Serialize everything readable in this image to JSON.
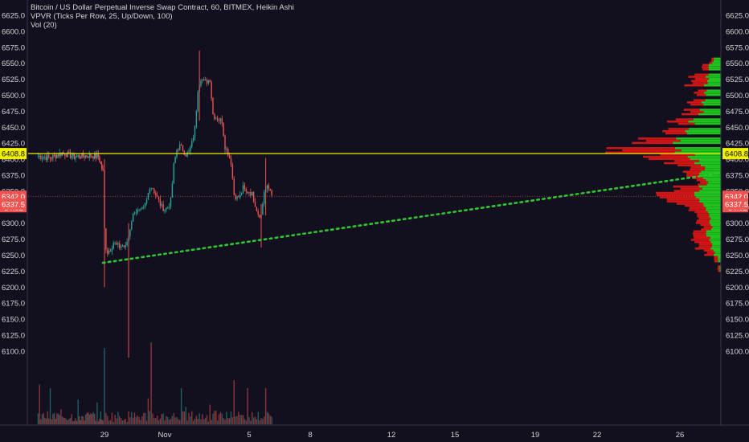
{
  "legend": {
    "line1": "Bitcoin / US Dollar Perpetual Inverse Swap Contract, 60, BITMEX, Heikin Ashi",
    "line2": "VPVR (Ticks Per Row, 25, Up/Down, 100)",
    "line3": "Vol (20)"
  },
  "colors": {
    "background": "#120f1e",
    "up": "#26a69a",
    "down": "#ef5350",
    "vp_up": "#1fc41f",
    "vp_down": "#d01515",
    "resistance": "#f0f000",
    "trendline": "#2ec62e"
  },
  "price_tags": {
    "resistance": "6408.8",
    "current_price": "6342.0",
    "countdown": "34:02",
    "level_below": "6337.5"
  },
  "chart_data": {
    "type": "candlestick",
    "chart_style": "Heikin Ashi",
    "symbol": "Bitcoin / US Dollar Perpetual Inverse Swap Contract",
    "exchange": "BITMEX",
    "interval": "60",
    "ylim": [
      6090,
      6635
    ],
    "y_ticks": [
      "6625.0",
      "6600.0",
      "6575.0",
      "6550.0",
      "6525.0",
      "6500.0",
      "6475.0",
      "6450.0",
      "6425.0",
      "6400.0",
      "6375.0",
      "6350.0",
      "6325.0",
      "6300.0",
      "6275.0",
      "6250.0",
      "6225.0",
      "6200.0",
      "6175.0",
      "6150.0",
      "6125.0",
      "6100.0"
    ],
    "x_ticks": [
      "29",
      "Nov",
      "5",
      "8",
      "12",
      "15",
      "19",
      "22",
      "26"
    ],
    "price_path": [
      [
        0,
        6405
      ],
      [
        4,
        6402
      ],
      [
        8,
        6410
      ],
      [
        12,
        6404
      ],
      [
        17,
        6406
      ],
      [
        20,
        6404
      ],
      [
        21.5,
        6380
      ],
      [
        22,
        6290
      ],
      [
        22.5,
        6262
      ],
      [
        23,
        6255
      ],
      [
        24,
        6260
      ],
      [
        25,
        6270
      ],
      [
        26,
        6265
      ],
      [
        27,
        6263
      ],
      [
        28,
        6265
      ],
      [
        29,
        6262
      ],
      [
        30,
        6280
      ],
      [
        31,
        6305
      ],
      [
        32,
        6320
      ],
      [
        33,
        6318
      ],
      [
        34,
        6318
      ],
      [
        35,
        6322
      ],
      [
        36,
        6335
      ],
      [
        37,
        6358
      ],
      [
        38,
        6355
      ],
      [
        39,
        6345
      ],
      [
        40,
        6335
      ],
      [
        41,
        6325
      ],
      [
        42,
        6322
      ],
      [
        43,
        6325
      ],
      [
        44,
        6335
      ],
      [
        45,
        6390
      ],
      [
        46,
        6415
      ],
      [
        47,
        6420
      ],
      [
        48,
        6415
      ],
      [
        49,
        6408
      ],
      [
        50,
        6410
      ],
      [
        51,
        6425
      ],
      [
        52,
        6448
      ],
      [
        53,
        6510
      ],
      [
        54,
        6528
      ],
      [
        55,
        6520
      ],
      [
        56,
        6522
      ],
      [
        57,
        6525
      ],
      [
        58,
        6470
      ],
      [
        59,
        6465
      ],
      [
        60,
        6462
      ],
      [
        61,
        6460
      ],
      [
        62,
        6420
      ],
      [
        63,
        6410
      ],
      [
        64,
        6395
      ],
      [
        65,
        6345
      ],
      [
        66,
        6340
      ],
      [
        67,
        6342
      ],
      [
        68,
        6355
      ],
      [
        69,
        6348
      ],
      [
        70,
        6350
      ],
      [
        71,
        6345
      ],
      [
        72,
        6330
      ],
      [
        73,
        6315
      ],
      [
        74,
        6312
      ],
      [
        75,
        6350
      ],
      [
        76,
        6355
      ],
      [
        77,
        6352
      ],
      [
        78,
        6342
      ]
    ],
    "volume_profile": {
      "row_price_step": 6.25,
      "rows": [
        [
          6550,
          0.08,
          0.25
        ],
        [
          6540,
          0.18,
          0.35
        ],
        [
          6525,
          0.45,
          0.4
        ],
        [
          6515,
          0.52,
          0.45
        ],
        [
          6500,
          0.3,
          0.5
        ],
        [
          6485,
          0.4,
          0.55
        ],
        [
          6470,
          0.45,
          0.6
        ],
        [
          6455,
          0.55,
          0.85
        ],
        [
          6440,
          0.6,
          0.95
        ],
        [
          6425,
          1.1,
          1.3
        ],
        [
          6410,
          1.8,
          1.2
        ],
        [
          6400,
          1.2,
          0.9
        ],
        [
          6390,
          0.8,
          0.7
        ],
        [
          6380,
          0.5,
          0.55
        ],
        [
          6370,
          0.35,
          0.6
        ],
        [
          6360,
          0.25,
          0.4
        ],
        [
          6350,
          0.7,
          0.6
        ],
        [
          6340,
          1.0,
          0.7
        ],
        [
          6330,
          0.9,
          0.6
        ],
        [
          6320,
          0.55,
          0.5
        ],
        [
          6310,
          0.35,
          0.35
        ],
        [
          6300,
          0.4,
          0.35
        ],
        [
          6290,
          0.3,
          0.3
        ],
        [
          6280,
          0.35,
          0.4
        ],
        [
          6270,
          0.55,
          0.35
        ],
        [
          6260,
          0.45,
          0.3
        ],
        [
          6250,
          0.25,
          0.2
        ],
        [
          6240,
          0.12,
          0.1
        ],
        [
          6225,
          0.06,
          0.04
        ]
      ]
    },
    "horizontal_line": 6408.8,
    "trendline": {
      "style": "dotted",
      "from": [
        0,
        6238
      ],
      "to": [
        112,
        6378
      ]
    },
    "volume_indicator": "Vol (20)"
  }
}
